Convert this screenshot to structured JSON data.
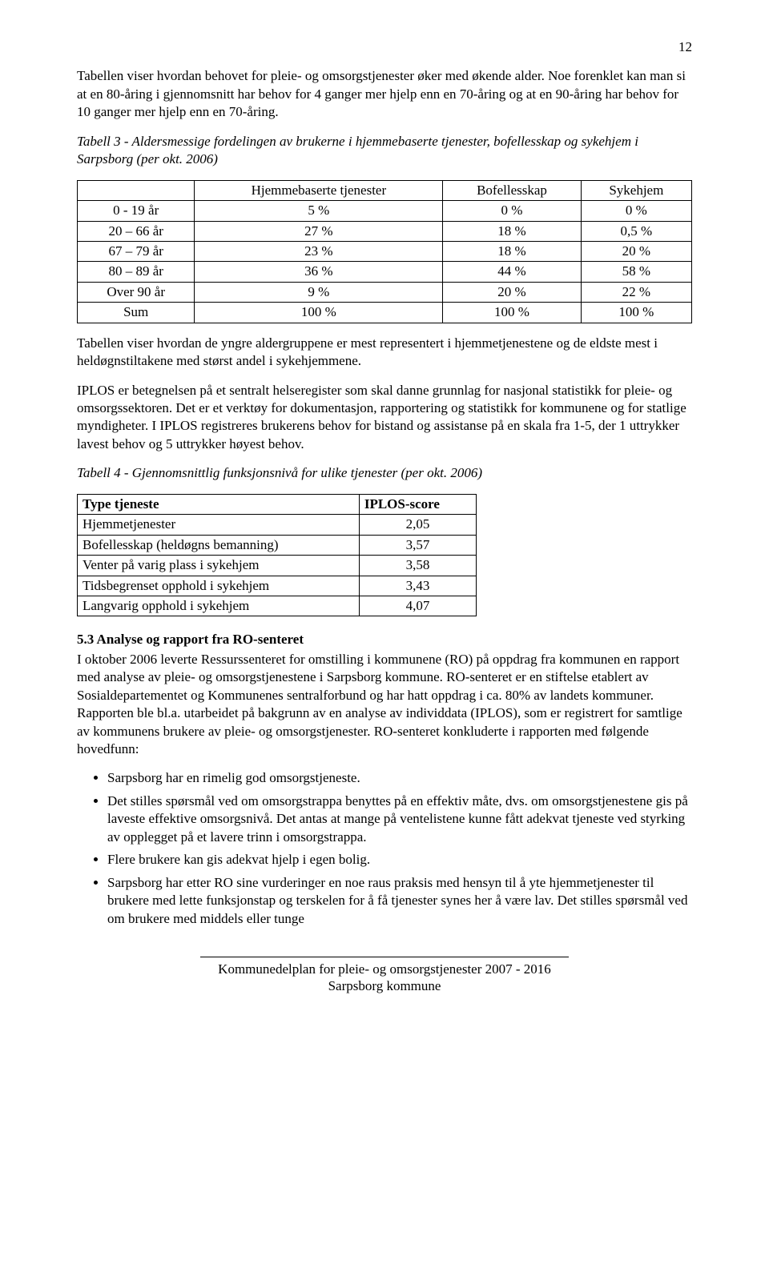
{
  "page_number": "12",
  "para_intro": "Tabellen viser hvordan behovet for pleie- og omsorgstjenester øker med økende alder. Noe forenklet kan man si at en 80-åring i gjennomsnitt har behov for 4 ganger mer hjelp enn en 70-åring og at en 90-åring har behov for 10 ganger mer hjelp enn en 70-åring.",
  "table3_caption": "Tabell 3 - Aldersmessige fordelingen av brukerne i hjemmebaserte tjenester, bofellesskap og sykehjem i Sarpsborg  (per okt. 2006)",
  "table3_headers": [
    "",
    "Hjemmebaserte tjenester",
    "Bofellesskap",
    "Sykehjem"
  ],
  "table3_rows": [
    [
      "0 - 19 år",
      "5 %",
      "0 %",
      "0 %"
    ],
    [
      "20 – 66 år",
      "27 %",
      "18 %",
      "0,5 %"
    ],
    [
      "67 – 79 år",
      "23 %",
      "18 %",
      "20 %"
    ],
    [
      "80 – 89 år",
      "36 %",
      "44 %",
      "58 %"
    ],
    [
      "Over 90 år",
      "9 %",
      "20 %",
      "22 %"
    ],
    [
      "Sum",
      "100 %",
      "100 %",
      "100 %"
    ]
  ],
  "para_after_t3": "Tabellen viser hvordan de yngre aldergruppene er mest representert i hjemmetjenestene og de eldste mest i heldøgnstiltakene med størst andel i sykehjemmene.",
  "para_iplos": "IPLOS er betegnelsen på et sentralt helseregister som skal danne grunnlag for nasjonal statistikk for pleie- og omsorgssektoren. Det er et verktøy for dokumentasjon, rapportering og statistikk for kommunene og for statlige myndigheter. I  IPLOS registreres brukerens behov for bistand og assistanse på en skala fra 1-5, der 1 uttrykker lavest behov og 5 uttrykker høyest behov.",
  "table4_caption": "Tabell 4 - Gjennomsnittlig funksjonsnivå for ulike tjenester  (per okt. 2006)",
  "table4_headers": [
    "Type tjeneste",
    "IPLOS-score"
  ],
  "table4_rows": [
    [
      "Hjemmetjenester",
      "2,05"
    ],
    [
      "Bofellesskap (heldøgns bemanning)",
      "3,57"
    ],
    [
      "Venter på varig plass i sykehjem",
      "3,58"
    ],
    [
      "Tidsbegrenset opphold i sykehjem",
      "3,43"
    ],
    [
      "Langvarig opphold i sykehjem",
      "4,07"
    ]
  ],
  "section_53_title": "5.3  Analyse og rapport fra RO-senteret",
  "section_53_body": "I oktober 2006 leverte Ressurssenteret for omstilling i kommunene (RO) på oppdrag fra kommunen en rapport med analyse av pleie- og omsorgstjenestene i Sarpsborg kommune. RO-senteret er en stiftelse etablert av Sosialdepartementet og Kommunenes sentralforbund og har hatt oppdrag i ca. 80% av landets kommuner. Rapporten ble bl.a. utarbeidet på bakgrunn av en analyse av individdata (IPLOS), som er registrert for samtlige av kommunens brukere av pleie- og omsorgstjenester. RO-senteret konkluderte i rapporten med følgende hovedfunn:",
  "bullets": [
    "Sarpsborg har en rimelig god omsorgstjeneste.",
    "Det stilles spørsmål ved om omsorgstrappa benyttes på en effektiv måte, dvs. om omsorgstjenestene gis på laveste effektive omsorgsnivå. Det antas at mange på ventelistene kunne fått adekvat tjeneste ved styrking av opplegget på et lavere trinn i omsorgstrappa.",
    "Flere brukere kan gis adekvat hjelp i egen bolig.",
    "Sarpsborg har etter RO sine vurderinger en noe raus praksis med hensyn til å yte hjemmetjenester til brukere med lette funksjonstap og terskelen for å få tjenester synes her å være lav. Det stilles spørsmål ved om brukere med middels eller tunge"
  ],
  "footer_line1": "Kommunedelplan for pleie- og omsorgstjenester 2007 - 2016",
  "footer_line2": "Sarpsborg kommune"
}
